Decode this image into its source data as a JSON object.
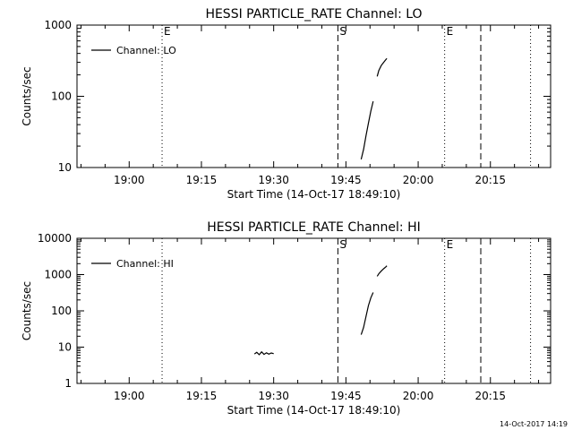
{
  "footer": {
    "date": "14-Oct-2017 14:19"
  },
  "chart_data": [
    {
      "type": "line",
      "title": "HESSI PARTICLE_RATE Channel: LO",
      "xlabel": "Start Time (14-Oct-17 18:49:10)",
      "ylabel": "Counts/sec",
      "yscale": "log",
      "xlim": [
        "18:49:10",
        "20:27:30"
      ],
      "ylim": [
        10,
        1000
      ],
      "xticks": [
        "19:00",
        "19:15",
        "19:30",
        "19:45",
        "20:00",
        "20:15"
      ],
      "yticks": [
        "10",
        "100",
        "1000"
      ],
      "legend": {
        "label": "Channel: LO",
        "position": "top-left"
      },
      "markers": [
        {
          "time": "19:06:50",
          "style": "dotted",
          "label": "E"
        },
        {
          "time": "19:43:20",
          "style": "dashed",
          "label": "S"
        },
        {
          "time": "20:05:30",
          "style": "dotted",
          "label": "E"
        },
        {
          "time": "20:13:00",
          "style": "dashed",
          "label": ""
        },
        {
          "time": "20:23:20",
          "style": "dotted",
          "label": ""
        }
      ],
      "series": [
        {
          "name": "Channel: LO",
          "segments": [
            {
              "x": [
                "19:48:10",
                "19:48:40",
                "19:49:10",
                "19:49:40",
                "19:50:10",
                "19:50:40"
              ],
              "y": [
                13,
                18,
                28,
                42,
                62,
                85
              ]
            },
            {
              "x": [
                "19:51:30",
                "19:51:50",
                "19:52:20",
                "19:52:50",
                "19:53:20",
                "19:53:30"
              ],
              "y": [
                190,
                230,
                270,
                300,
                330,
                340
              ]
            }
          ]
        }
      ]
    },
    {
      "type": "line",
      "title": "HESSI PARTICLE_RATE Channel: HI",
      "xlabel": "Start Time (14-Oct-17 18:49:10)",
      "ylabel": "Counts/sec",
      "yscale": "log",
      "xlim": [
        "18:49:10",
        "20:27:30"
      ],
      "ylim": [
        1,
        10000
      ],
      "xticks": [
        "19:00",
        "19:15",
        "19:30",
        "19:45",
        "20:00",
        "20:15"
      ],
      "yticks": [
        "1",
        "10",
        "100",
        "1000",
        "10000"
      ],
      "legend": {
        "label": "Channel: HI",
        "position": "top-left"
      },
      "markers": [
        {
          "time": "19:06:50",
          "style": "dotted",
          "label": ""
        },
        {
          "time": "19:43:20",
          "style": "dashed",
          "label": "S"
        },
        {
          "time": "20:05:30",
          "style": "dotted",
          "label": "E"
        },
        {
          "time": "20:13:00",
          "style": "dashed",
          "label": ""
        },
        {
          "time": "20:23:20",
          "style": "dotted",
          "label": ""
        }
      ],
      "series": [
        {
          "name": "Channel: HI",
          "segments": [
            {
              "x": [
                "19:26:00",
                "19:26:30",
                "19:27:00",
                "19:27:30",
                "19:28:00",
                "19:28:30",
                "19:29:00",
                "19:29:30",
                "19:30:00"
              ],
              "y": [
                6.5,
                7.2,
                6.2,
                7.4,
                6.3,
                7.0,
                6.4,
                6.9,
                6.6
              ]
            },
            {
              "x": [
                "19:48:10",
                "19:48:40",
                "19:49:10",
                "19:49:40",
                "19:50:10",
                "19:50:40"
              ],
              "y": [
                22,
                35,
                70,
                140,
                230,
                320
              ]
            },
            {
              "x": [
                "19:51:30",
                "19:51:50",
                "19:52:20",
                "19:52:50",
                "19:53:20",
                "19:53:30"
              ],
              "y": [
                900,
                1050,
                1250,
                1450,
                1650,
                1750
              ]
            }
          ]
        }
      ]
    }
  ]
}
